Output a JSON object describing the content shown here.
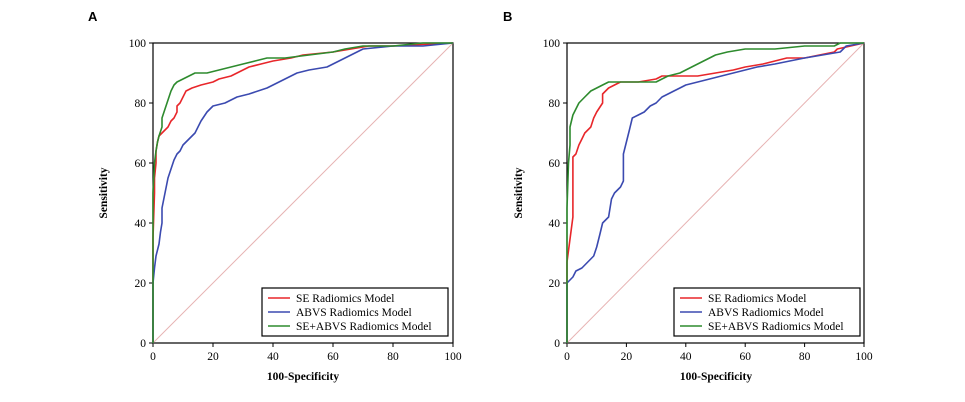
{
  "chart_data": [
    {
      "type": "line",
      "panel_label": "A",
      "xlabel": "100-Specificity",
      "ylabel": "Sensitivity",
      "xlim": [
        0,
        100
      ],
      "ylim": [
        0,
        100
      ],
      "xticks": [
        0,
        20,
        40,
        60,
        80,
        100
      ],
      "yticks": [
        0,
        20,
        40,
        60,
        80,
        100
      ],
      "reference_line": "diagonal",
      "legend_position": "bottom-right",
      "series": [
        {
          "name": "SE Radiomics Model",
          "color": "#e8262a",
          "points": [
            [
              0,
              0
            ],
            [
              0,
              35
            ],
            [
              0.5,
              50
            ],
            [
              0.5,
              55
            ],
            [
              1,
              60
            ],
            [
              1,
              64
            ],
            [
              1.5,
              67
            ],
            [
              2,
              69
            ],
            [
              3,
              70
            ],
            [
              4,
              71
            ],
            [
              5,
              72
            ],
            [
              6,
              74
            ],
            [
              7,
              75
            ],
            [
              8,
              77
            ],
            [
              8,
              79
            ],
            [
              9,
              80
            ],
            [
              10,
              82
            ],
            [
              11,
              84
            ],
            [
              13,
              85
            ],
            [
              16,
              86
            ],
            [
              20,
              87
            ],
            [
              22,
              88
            ],
            [
              26,
              89
            ],
            [
              28,
              90
            ],
            [
              30,
              91
            ],
            [
              32,
              92
            ],
            [
              36,
              93
            ],
            [
              40,
              94
            ],
            [
              46,
              95
            ],
            [
              50,
              96
            ],
            [
              60,
              97
            ],
            [
              66,
              98
            ],
            [
              72,
              99
            ],
            [
              80,
              99
            ],
            [
              100,
              100
            ]
          ]
        },
        {
          "name": "ABVS Radiomics Model",
          "color": "#3b4ab0",
          "points": [
            [
              0,
              0
            ],
            [
              0,
              20
            ],
            [
              0.5,
              25
            ],
            [
              1,
              29
            ],
            [
              2,
              33
            ],
            [
              2.5,
              37
            ],
            [
              3,
              40
            ],
            [
              3,
              45
            ],
            [
              4,
              50
            ],
            [
              5,
              55
            ],
            [
              6,
              58
            ],
            [
              7,
              61
            ],
            [
              8,
              63
            ],
            [
              9,
              64
            ],
            [
              10,
              66
            ],
            [
              12,
              68
            ],
            [
              14,
              70
            ],
            [
              16,
              74
            ],
            [
              18,
              77
            ],
            [
              20,
              79
            ],
            [
              24,
              80
            ],
            [
              28,
              82
            ],
            [
              32,
              83
            ],
            [
              38,
              85
            ],
            [
              42,
              87
            ],
            [
              44,
              88
            ],
            [
              46,
              89
            ],
            [
              48,
              90
            ],
            [
              52,
              91
            ],
            [
              58,
              92
            ],
            [
              62,
              94
            ],
            [
              66,
              96
            ],
            [
              68,
              97
            ],
            [
              70,
              98
            ],
            [
              80,
              99
            ],
            [
              90,
              99
            ],
            [
              100,
              100
            ]
          ]
        },
        {
          "name": "SE+ABVS Radiomics Model",
          "color": "#2e8b2e",
          "points": [
            [
              0,
              0
            ],
            [
              0,
              50
            ],
            [
              0.5,
              60
            ],
            [
              1,
              64
            ],
            [
              1.5,
              67
            ],
            [
              2,
              69
            ],
            [
              3,
              72
            ],
            [
              3,
              75
            ],
            [
              4,
              78
            ],
            [
              5,
              81
            ],
            [
              6,
              84
            ],
            [
              7,
              86
            ],
            [
              8,
              87
            ],
            [
              10,
              88
            ],
            [
              12,
              89
            ],
            [
              14,
              90
            ],
            [
              18,
              90
            ],
            [
              22,
              91
            ],
            [
              26,
              92
            ],
            [
              30,
              93
            ],
            [
              34,
              94
            ],
            [
              38,
              95
            ],
            [
              44,
              95
            ],
            [
              52,
              96
            ],
            [
              60,
              97
            ],
            [
              64,
              98
            ],
            [
              70,
              99
            ],
            [
              80,
              99
            ],
            [
              90,
              100
            ],
            [
              100,
              100
            ]
          ]
        }
      ]
    },
    {
      "type": "line",
      "panel_label": "B",
      "xlabel": "100-Specificity",
      "ylabel": "Sensitivity",
      "xlim": [
        0,
        100
      ],
      "ylim": [
        0,
        100
      ],
      "xticks": [
        0,
        20,
        40,
        60,
        80,
        100
      ],
      "yticks": [
        0,
        20,
        40,
        60,
        80,
        100
      ],
      "reference_line": "diagonal",
      "legend_position": "bottom-right",
      "series": [
        {
          "name": "SE Radiomics Model",
          "color": "#e8262a",
          "points": [
            [
              0,
              0
            ],
            [
              0,
              27
            ],
            [
              2,
              42
            ],
            [
              2,
              62
            ],
            [
              3,
              63
            ],
            [
              4,
              66
            ],
            [
              5,
              68
            ],
            [
              6,
              70
            ],
            [
              8,
              72
            ],
            [
              9,
              75
            ],
            [
              10,
              77
            ],
            [
              12,
              80
            ],
            [
              12,
              83
            ],
            [
              14,
              85
            ],
            [
              16,
              86
            ],
            [
              18,
              87
            ],
            [
              24,
              87
            ],
            [
              30,
              88
            ],
            [
              32,
              89
            ],
            [
              44,
              89
            ],
            [
              50,
              90
            ],
            [
              56,
              91
            ],
            [
              60,
              92
            ],
            [
              66,
              93
            ],
            [
              70,
              94
            ],
            [
              74,
              95
            ],
            [
              80,
              95
            ],
            [
              90,
              97
            ],
            [
              91,
              98
            ],
            [
              100,
              100
            ]
          ]
        },
        {
          "name": "ABVS Radiomics Model",
          "color": "#3b4ab0",
          "points": [
            [
              0,
              0
            ],
            [
              0,
              20
            ],
            [
              2,
              22
            ],
            [
              3,
              24
            ],
            [
              5,
              25
            ],
            [
              7,
              27
            ],
            [
              9,
              29
            ],
            [
              10,
              32
            ],
            [
              11,
              36
            ],
            [
              12,
              40
            ],
            [
              14,
              42
            ],
            [
              15,
              48
            ],
            [
              16,
              50
            ],
            [
              18,
              52
            ],
            [
              19,
              54
            ],
            [
              19,
              63
            ],
            [
              20,
              67
            ],
            [
              21,
              71
            ],
            [
              22,
              75
            ],
            [
              24,
              76
            ],
            [
              26,
              77
            ],
            [
              28,
              79
            ],
            [
              30,
              80
            ],
            [
              32,
              82
            ],
            [
              34,
              83
            ],
            [
              36,
              84
            ],
            [
              38,
              85
            ],
            [
              40,
              86
            ],
            [
              44,
              87
            ],
            [
              48,
              88
            ],
            [
              52,
              89
            ],
            [
              56,
              90
            ],
            [
              60,
              91
            ],
            [
              64,
              92
            ],
            [
              70,
              93
            ],
            [
              80,
              95
            ],
            [
              92,
              97
            ],
            [
              94,
              99
            ],
            [
              100,
              100
            ]
          ]
        },
        {
          "name": "SE+ABVS Radiomics Model",
          "color": "#2e8b2e",
          "points": [
            [
              0,
              0
            ],
            [
              0,
              45
            ],
            [
              0.5,
              60
            ],
            [
              1,
              66
            ],
            [
              1,
              72
            ],
            [
              2,
              76
            ],
            [
              3,
              78
            ],
            [
              4,
              80
            ],
            [
              6,
              82
            ],
            [
              8,
              84
            ],
            [
              10,
              85
            ],
            [
              12,
              86
            ],
            [
              14,
              87
            ],
            [
              20,
              87
            ],
            [
              30,
              87
            ],
            [
              32,
              88
            ],
            [
              34,
              89
            ],
            [
              38,
              90
            ],
            [
              42,
              92
            ],
            [
              46,
              94
            ],
            [
              50,
              96
            ],
            [
              54,
              97
            ],
            [
              60,
              98
            ],
            [
              70,
              98
            ],
            [
              80,
              99
            ],
            [
              90,
              99
            ],
            [
              92,
              100
            ],
            [
              100,
              100
            ]
          ]
        }
      ]
    }
  ]
}
